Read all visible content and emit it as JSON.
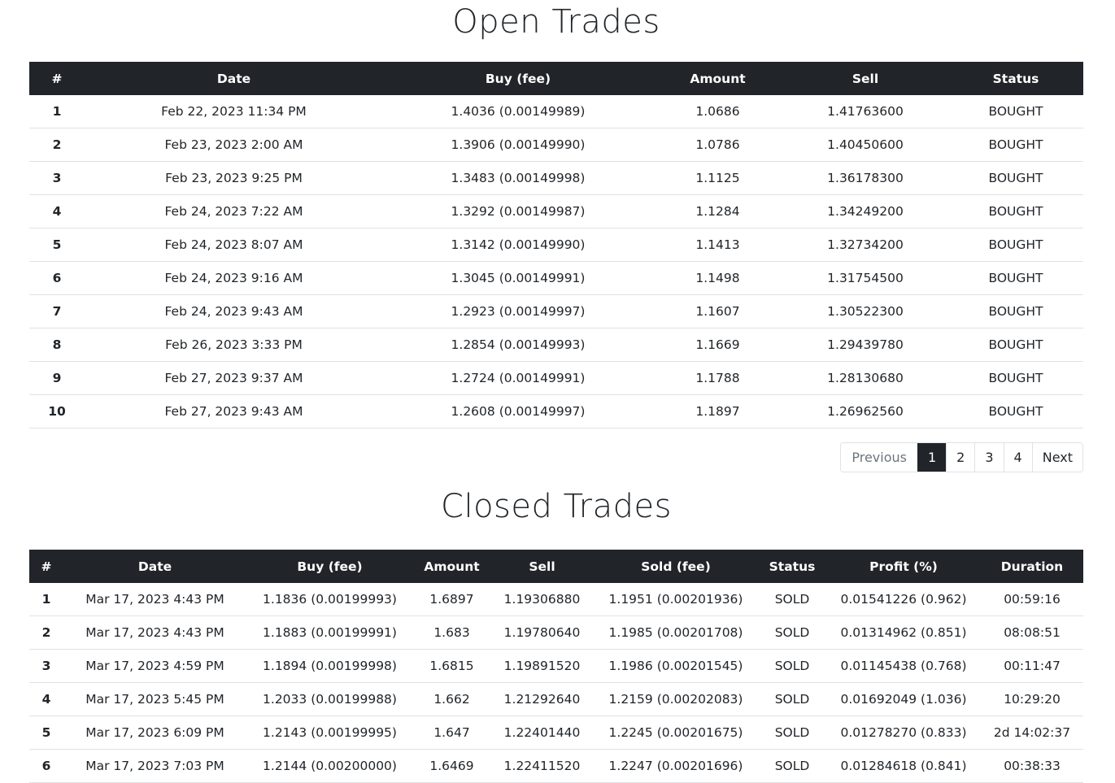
{
  "open_trades": {
    "title": "Open Trades",
    "columns": [
      "#",
      "Date",
      "Buy (fee)",
      "Amount",
      "Sell",
      "Status"
    ],
    "rows": [
      [
        "1",
        "Feb 22, 2023 11:34 PM",
        "1.4036 (0.00149989)",
        "1.0686",
        "1.41763600",
        "BOUGHT"
      ],
      [
        "2",
        "Feb 23, 2023 2:00 AM",
        "1.3906 (0.00149990)",
        "1.0786",
        "1.40450600",
        "BOUGHT"
      ],
      [
        "3",
        "Feb 23, 2023 9:25 PM",
        "1.3483 (0.00149998)",
        "1.1125",
        "1.36178300",
        "BOUGHT"
      ],
      [
        "4",
        "Feb 24, 2023 7:22 AM",
        "1.3292 (0.00149987)",
        "1.1284",
        "1.34249200",
        "BOUGHT"
      ],
      [
        "5",
        "Feb 24, 2023 8:07 AM",
        "1.3142 (0.00149990)",
        "1.1413",
        "1.32734200",
        "BOUGHT"
      ],
      [
        "6",
        "Feb 24, 2023 9:16 AM",
        "1.3045 (0.00149991)",
        "1.1498",
        "1.31754500",
        "BOUGHT"
      ],
      [
        "7",
        "Feb 24, 2023 9:43 AM",
        "1.2923 (0.00149997)",
        "1.1607",
        "1.30522300",
        "BOUGHT"
      ],
      [
        "8",
        "Feb 26, 2023 3:33 PM",
        "1.2854 (0.00149993)",
        "1.1669",
        "1.29439780",
        "BOUGHT"
      ],
      [
        "9",
        "Feb 27, 2023 9:37 AM",
        "1.2724 (0.00149991)",
        "1.1788",
        "1.28130680",
        "BOUGHT"
      ],
      [
        "10",
        "Feb 27, 2023 9:43 AM",
        "1.2608 (0.00149997)",
        "1.1897",
        "1.26962560",
        "BOUGHT"
      ]
    ],
    "pagination": {
      "previous": "Previous",
      "pages": [
        "1",
        "2",
        "3",
        "4"
      ],
      "active": "1",
      "next": "Next"
    }
  },
  "closed_trades": {
    "title": "Closed Trades",
    "columns": [
      "#",
      "Date",
      "Buy (fee)",
      "Amount",
      "Sell",
      "Sold (fee)",
      "Status",
      "Profit (%)",
      "Duration"
    ],
    "rows": [
      [
        "1",
        "Mar 17, 2023 4:43 PM",
        "1.1836 (0.00199993)",
        "1.6897",
        "1.19306880",
        "1.1951 (0.00201936)",
        "SOLD",
        "0.01541226 (0.962)",
        "00:59:16"
      ],
      [
        "2",
        "Mar 17, 2023 4:43 PM",
        "1.1883 (0.00199991)",
        "1.683",
        "1.19780640",
        "1.1985 (0.00201708)",
        "SOLD",
        "0.01314962 (0.851)",
        "08:08:51"
      ],
      [
        "3",
        "Mar 17, 2023 4:59 PM",
        "1.1894 (0.00199998)",
        "1.6815",
        "1.19891520",
        "1.1986 (0.00201545)",
        "SOLD",
        "0.01145438 (0.768)",
        "00:11:47"
      ],
      [
        "4",
        "Mar 17, 2023 5:45 PM",
        "1.2033 (0.00199988)",
        "1.662",
        "1.21292640",
        "1.2159 (0.00202083)",
        "SOLD",
        "0.01692049 (1.036)",
        "10:29:20"
      ],
      [
        "5",
        "Mar 17, 2023 6:09 PM",
        "1.2143 (0.00199995)",
        "1.647",
        "1.22401440",
        "1.2245 (0.00201675)",
        "SOLD",
        "0.01278270 (0.833)",
        "2d 14:02:37"
      ],
      [
        "6",
        "Mar 17, 2023 7:03 PM",
        "1.2144 (0.00200000)",
        "1.6469",
        "1.22411520",
        "1.2247 (0.00201696)",
        "SOLD",
        "0.01284618 (0.841)",
        "00:38:33"
      ]
    ]
  }
}
